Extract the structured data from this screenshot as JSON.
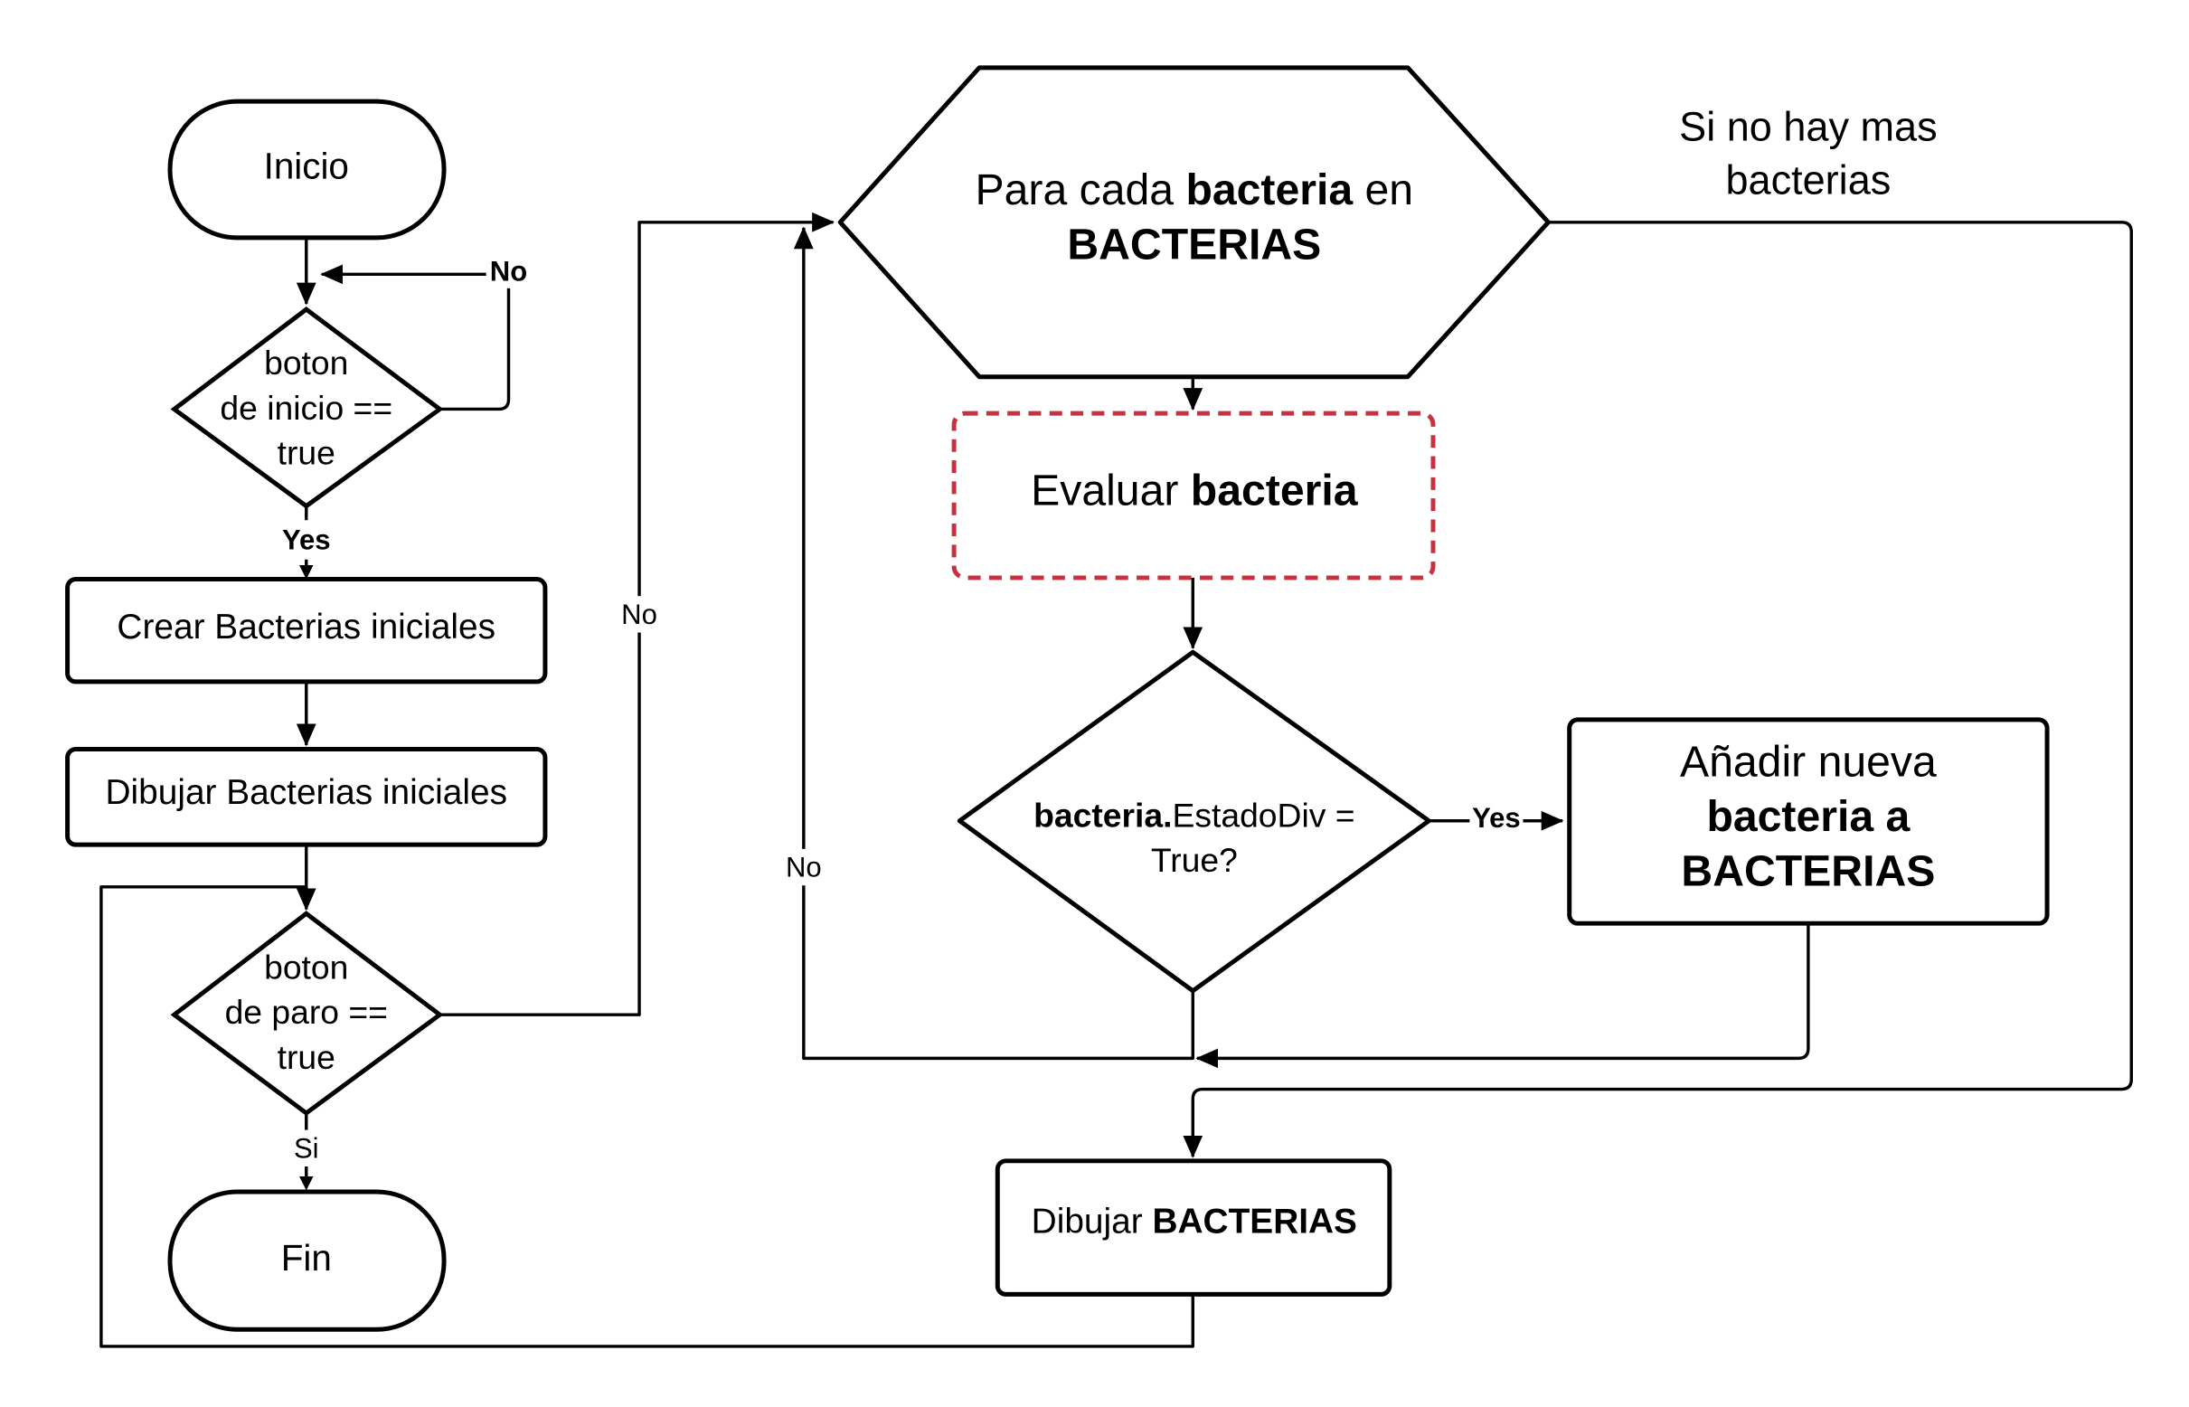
{
  "colors": {
    "stroke": "#000000",
    "dashed_stroke": "#c8313f",
    "background": "#ffffff"
  },
  "nodes": {
    "inicio": "Inicio",
    "decision_inicio": {
      "line1": "boton",
      "line2": "de inicio ==",
      "line3": "true"
    },
    "crear": "Crear Bacterias iniciales",
    "dibujar_iniciales": "Dibujar Bacterias iniciales",
    "decision_paro": {
      "line1": "boton",
      "line2": "de paro ==",
      "line3": "true"
    },
    "fin": "Fin",
    "loop": {
      "line1_pre": "Para cada ",
      "line1_bold": "bacteria",
      "line1_post": " en",
      "line2_bold": "BACTERIAS"
    },
    "evaluar": {
      "pre": "Evaluar ",
      "bold": "bacteria"
    },
    "decision_div": {
      "line1_bold": "bacteria.",
      "line1_post": "EstadoDiv =",
      "line2": "True?"
    },
    "anadir": {
      "line1": "Añadir nueva",
      "line2_bold": "bacteria a",
      "line3_bold": "BACTERIAS"
    },
    "dibujar": {
      "pre": "Dibujar ",
      "bold": "BACTERIAS"
    }
  },
  "labels": {
    "no_inicio": "No",
    "yes_inicio": "Yes",
    "si_paro": "Si",
    "no_paro": "No",
    "yes_div": "Yes",
    "no_div": "No",
    "loop_exit_line1": "Si no hay mas",
    "loop_exit_line2": "bacterias"
  }
}
